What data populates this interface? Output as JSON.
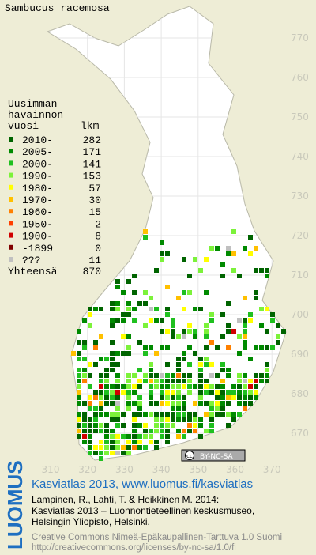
{
  "title": "Sambucus racemosa",
  "legend": {
    "heading": [
      "Uusimman",
      "havainnon",
      "vuosi"
    ],
    "count_heading": "lkm",
    "rows": [
      {
        "label": "2010-",
        "count": 282,
        "color": "#006400"
      },
      {
        "label": "2005-",
        "count": 171,
        "color": "#008a00"
      },
      {
        "label": "2000-",
        "count": 141,
        "color": "#1fc01f"
      },
      {
        "label": "1990-",
        "count": 153,
        "color": "#7cf23a"
      },
      {
        "label": "1980-",
        "count": 57,
        "color": "#ffff00"
      },
      {
        "label": "1970-",
        "count": 30,
        "color": "#ffc000"
      },
      {
        "label": "1960-",
        "count": 15,
        "color": "#ff8000"
      },
      {
        "label": "1950-",
        "count": 2,
        "color": "#ff4000"
      },
      {
        "label": "1900-",
        "count": 8,
        "color": "#d00000"
      },
      {
        "label": "-1899",
        "count": 0,
        "color": "#800000"
      },
      {
        "label": "???",
        "count": 11,
        "color": "#c0c0c0"
      }
    ],
    "total_label": "Yhteensä",
    "total": 870
  },
  "map": {
    "y_labels": [
      770,
      760,
      750,
      740,
      730,
      720,
      710,
      700,
      690,
      680,
      670
    ],
    "x_labels": [
      310,
      320,
      330,
      340,
      350,
      360,
      370
    ],
    "license_badge": "BY-NC-SA"
  },
  "footer": {
    "logo": "LUOMUS",
    "headline": "Kasviatlas 2013, www.luomus.fi/kasviatlas",
    "citation": [
      "Lampinen, R., Lahti, T. & Heikkinen M. 2014:",
      "Kasviatlas 2013 – Luonnontieteellinen keskusmuseo,",
      "Helsingin Yliopisto, Helsinki."
    ],
    "license": [
      "Creative Commons Nimeä-Epäkaupallinen-Tarttuva 1.0 Suomi",
      "http://creativecommons.org/licenses/by-nc-sa/1.0/fi"
    ]
  }
}
